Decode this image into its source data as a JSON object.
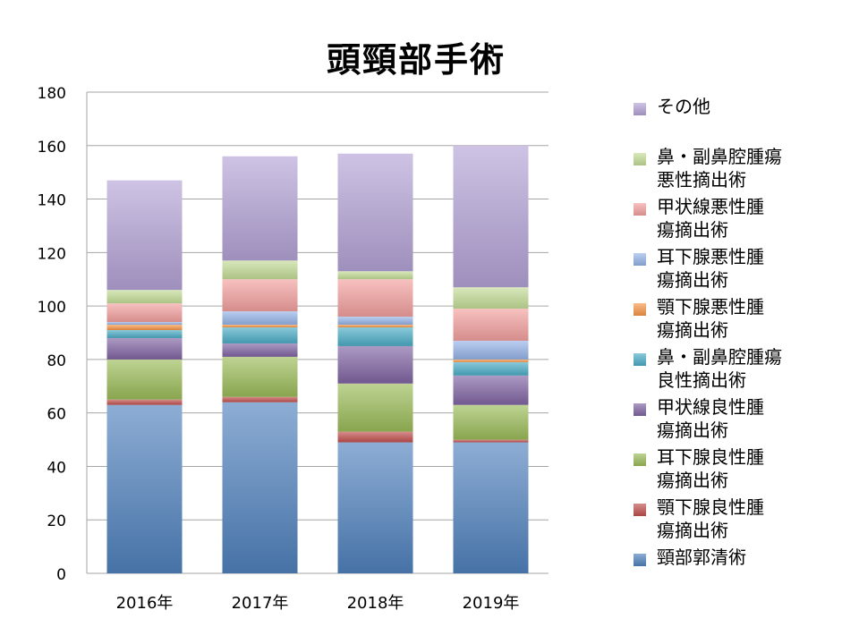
{
  "chart_data": {
    "type": "bar",
    "stacked": true,
    "title": "頭頸部手術",
    "xlabel": "",
    "ylabel": "",
    "categories": [
      "2016年",
      "2017年",
      "2018年",
      "2019年"
    ],
    "ylim": [
      0,
      180
    ],
    "yticks": [
      0,
      20,
      40,
      60,
      80,
      100,
      120,
      140,
      160,
      180
    ],
    "grid": true,
    "legend_position": "right",
    "series": [
      {
        "name": "頸部郭清術",
        "color": "#4f81bd",
        "values": [
          63,
          64,
          49,
          49
        ]
      },
      {
        "name": "顎下腺良性腫瘍摘出術",
        "color": "#c0504d",
        "values": [
          2,
          2,
          4,
          1
        ]
      },
      {
        "name": "耳下腺良性腫瘍摘出術",
        "color": "#9bbb59",
        "values": [
          15,
          15,
          18,
          13
        ]
      },
      {
        "name": "甲状線良性腫瘍摘出術",
        "color": "#8064a2",
        "values": [
          8,
          5,
          14,
          11
        ]
      },
      {
        "name": "鼻・副鼻腔腫瘍良性摘出術",
        "color": "#4bacc6",
        "values": [
          3,
          6,
          7,
          5
        ]
      },
      {
        "name": "顎下腺悪性腫瘍摘出術",
        "color": "#f79646",
        "values": [
          2,
          1,
          1,
          1
        ]
      },
      {
        "name": "耳下腺悪性腫瘍摘出術",
        "color": "#95b3e8",
        "values": [
          1,
          5,
          3,
          7
        ]
      },
      {
        "name": "甲状線悪性腫瘍摘出術",
        "color": "#f2a09e",
        "values": [
          7,
          12,
          14,
          12
        ]
      },
      {
        "name": "鼻・副鼻腔腫瘍悪性摘出術",
        "color": "#c3dc96",
        "values": [
          5,
          7,
          3,
          8
        ]
      },
      {
        "name": "その他",
        "color": "#b4a2d6",
        "values": [
          41,
          39,
          44,
          53
        ]
      }
    ]
  },
  "legend": {
    "items": [
      {
        "lines": [
          "その他"
        ],
        "color": "#b4a2d6"
      },
      {
        "lines": [
          "鼻・副鼻腔腫瘍",
          "悪性摘出術"
        ],
        "color": "#c3dc96"
      },
      {
        "lines": [
          "甲状線悪性腫",
          "瘍摘出術"
        ],
        "color": "#f2a09e"
      },
      {
        "lines": [
          "耳下腺悪性腫",
          "瘍摘出術"
        ],
        "color": "#95b3e8"
      },
      {
        "lines": [
          "顎下腺悪性腫",
          "瘍摘出術"
        ],
        "color": "#f79646"
      },
      {
        "lines": [
          "鼻・副鼻腔腫瘍",
          "良性摘出術"
        ],
        "color": "#4bacc6"
      },
      {
        "lines": [
          "甲状線良性腫",
          "瘍摘出術"
        ],
        "color": "#8064a2"
      },
      {
        "lines": [
          "耳下腺良性腫",
          "瘍摘出術"
        ],
        "color": "#9bbb59"
      },
      {
        "lines": [
          "顎下腺良性腫",
          "瘍摘出術"
        ],
        "color": "#c0504d"
      },
      {
        "lines": [
          "頸部郭清術"
        ],
        "color": "#4f81bd"
      }
    ]
  }
}
